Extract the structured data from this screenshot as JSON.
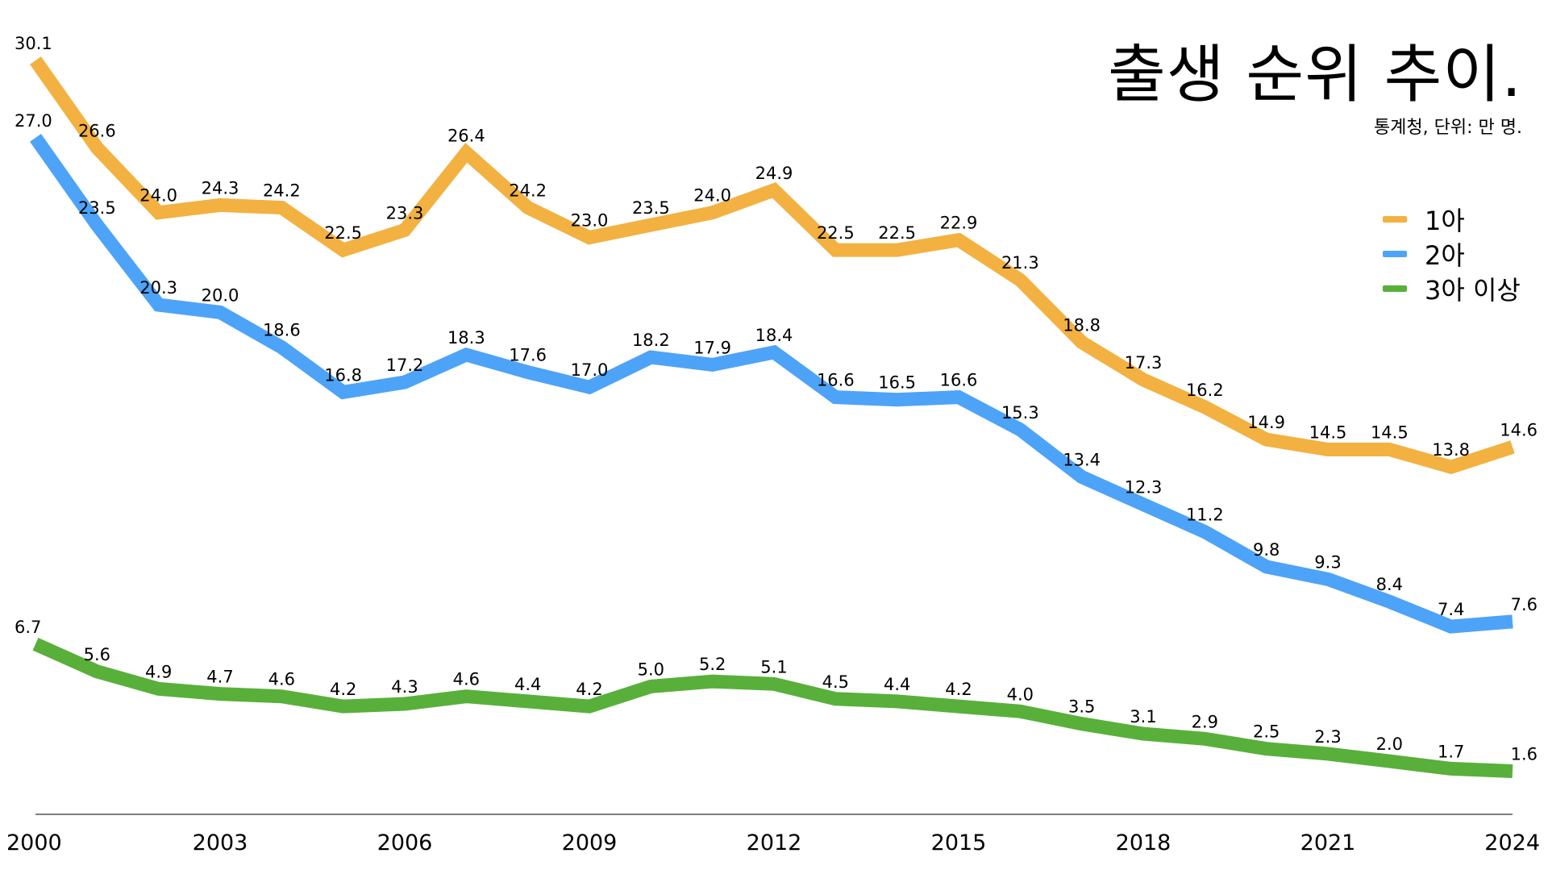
{
  "chart_data": {
    "type": "line",
    "title": "출생 순위 추이.",
    "subtitle": "통계청, 단위: 만 명.",
    "x": [
      2000,
      2001,
      2002,
      2003,
      2004,
      2005,
      2006,
      2007,
      2008,
      2009,
      2010,
      2011,
      2012,
      2013,
      2014,
      2015,
      2016,
      2017,
      2018,
      2019,
      2020,
      2021,
      2022,
      2023,
      2024
    ],
    "x_tick_labels": [
      "2000",
      "2003",
      "2006",
      "2009",
      "2012",
      "2015",
      "2018",
      "2021",
      "2024"
    ],
    "ylim": [
      0,
      31
    ],
    "grid": false,
    "legend_position": "top-right",
    "series": [
      {
        "name": "1아",
        "color": "#F2B140",
        "values": [
          30.1,
          26.6,
          24.0,
          24.3,
          24.2,
          22.5,
          23.3,
          26.4,
          24.2,
          23.0,
          23.5,
          24.0,
          24.9,
          22.5,
          22.5,
          22.9,
          21.3,
          18.8,
          17.3,
          16.2,
          14.9,
          14.5,
          14.5,
          13.8,
          14.6
        ],
        "labels": [
          "30.1",
          "26.6",
          "24.0",
          "24.3",
          "24.2",
          "22.5",
          "23.3",
          "26.4",
          "24.2",
          "23.0",
          "23.5",
          "24.0",
          "24.9",
          "22.5",
          "22.5",
          "22.9",
          "21.3",
          "18.8",
          "17.3",
          "16.2",
          "14.9",
          "14.5",
          "14.5",
          "13.8",
          "14.6"
        ]
      },
      {
        "name": "2아",
        "color": "#4DA3F7",
        "values": [
          27.0,
          23.5,
          20.3,
          20.0,
          18.6,
          16.8,
          17.2,
          18.3,
          17.6,
          17.0,
          18.2,
          17.9,
          18.4,
          16.6,
          16.5,
          16.6,
          15.3,
          13.4,
          12.3,
          11.2,
          9.8,
          9.3,
          8.4,
          7.4,
          7.6
        ],
        "labels": [
          "27.0",
          "23.5",
          "20.3",
          "20.0",
          "18.6",
          "16.8",
          "17.2",
          "18.3",
          "17.6",
          "17.0",
          "18.2",
          "17.9",
          "18.4",
          "16.6",
          "16.5",
          "16.6",
          "15.3",
          "13.4",
          "12.3",
          "11.2",
          "9.8",
          "9.3",
          "8.4",
          "7.4",
          "7.6"
        ]
      },
      {
        "name": "3아 이상",
        "color": "#58B03A",
        "values": [
          6.7,
          5.6,
          4.9,
          4.7,
          4.6,
          4.2,
          4.3,
          4.6,
          4.4,
          4.2,
          5.0,
          5.2,
          5.1,
          4.5,
          4.4,
          4.2,
          4.0,
          3.5,
          3.1,
          2.9,
          2.5,
          2.3,
          2.0,
          1.7,
          1.6
        ],
        "labels": [
          "6.7",
          "5.6",
          "4.9",
          "4.7",
          "4.6",
          "4.2",
          "4.3",
          "4.6",
          "4.4",
          "4.2",
          "5.0",
          "5.2",
          "5.1",
          "4.5",
          "4.4",
          "4.2",
          "4.0",
          "3.5",
          "3.1",
          "2.9",
          "2.5",
          "2.3",
          "2.0",
          "1.7",
          "1.6"
        ]
      }
    ]
  }
}
